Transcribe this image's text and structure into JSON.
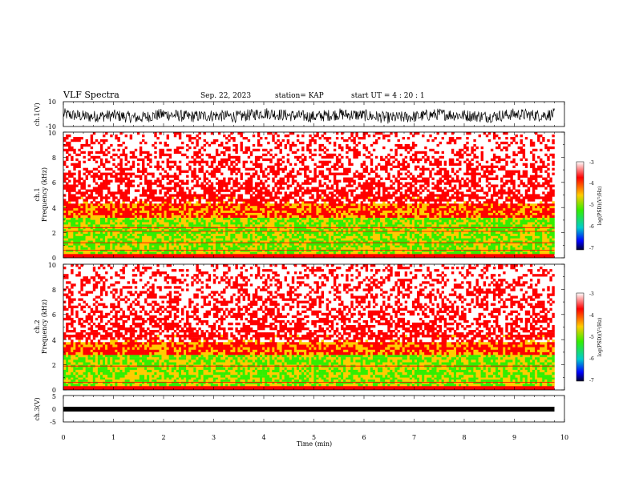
{
  "header": {
    "title": "VLF Spectra",
    "date": "Sep. 22, 2023",
    "station": "station= KAP",
    "start": "start  UT  =   4 : 20 : 1"
  },
  "colors": {
    "high": "#ff0000",
    "mid": "#ffcc00",
    "green": "#33ee00",
    "low": "#0000ff",
    "trace": "#000000"
  },
  "chart_data": [
    {
      "type": "line",
      "name": "ch1-waveform",
      "ylabel": "ch.1(V)",
      "ylim": [
        -10,
        10
      ],
      "yticks": [
        "10",
        "-10"
      ],
      "x": [
        0,
        0.5,
        1,
        1.5,
        2,
        2.5,
        3,
        3.5,
        4,
        4.5,
        5,
        5.5,
        6,
        6.5,
        7,
        7.5,
        8,
        8.5,
        9,
        9.5,
        9.8
      ],
      "values": [
        -2,
        -4,
        -3,
        -5,
        -2,
        -4,
        -3,
        -4,
        -1,
        -3,
        -4,
        -2,
        -3,
        -5,
        -4,
        -2,
        -3,
        -4,
        -2,
        -3,
        -2
      ],
      "amplitude_envelope": 6
    },
    {
      "type": "heatmap",
      "name": "ch1-spectrogram",
      "ylabel": "ch.1",
      "ylabel2": "Frequency (kHz)",
      "ylim": [
        0,
        10
      ],
      "yticks": [
        "0",
        "2",
        "4",
        "6",
        "8",
        "10"
      ],
      "zlabel": "log(PSD)(V²/Hz)",
      "zlim": [
        -7,
        -3
      ],
      "zticks": [
        "-3",
        "-4",
        "-5",
        "-6",
        "-7"
      ],
      "bands": [
        {
          "freq_khz": [
            0.3,
            1.0
          ],
          "level": -5.2
        },
        {
          "freq_khz": [
            1.0,
            3.2
          ],
          "level": -4.8
        },
        {
          "freq_khz": [
            3.2,
            4.5
          ],
          "level": -4.2
        },
        {
          "freq_khz": [
            4.5,
            10
          ],
          "level": -3.6
        }
      ],
      "lines_khz": [
        0.6,
        1.2,
        2.1,
        2.4
      ]
    },
    {
      "type": "heatmap",
      "name": "ch2-spectrogram",
      "ylabel": "ch.2",
      "ylabel2": "Frequency (kHz)",
      "ylim": [
        0,
        10
      ],
      "yticks": [
        "0",
        "2",
        "4",
        "6",
        "8",
        "10"
      ],
      "zlabel": "log(PSD)(V²/Hz)",
      "zlim": [
        -7,
        -3
      ],
      "zticks": [
        "-3",
        "-4",
        "-5",
        "-6",
        "-7"
      ],
      "bands": [
        {
          "freq_khz": [
            0.3,
            1.0
          ],
          "level": -5.3
        },
        {
          "freq_khz": [
            1.0,
            2.8
          ],
          "level": -4.9
        },
        {
          "freq_khz": [
            2.8,
            4.0
          ],
          "level": -4.2
        },
        {
          "freq_khz": [
            4.0,
            10
          ],
          "level": -3.6
        }
      ],
      "lines_khz": [
        0.6,
        1.9
      ]
    },
    {
      "type": "line",
      "name": "ch3-waveform",
      "ylabel": "ch.3(V)",
      "ylim": [
        -5,
        5
      ],
      "yticks": [
        "5",
        "0",
        "-5"
      ],
      "x": [
        0,
        9.8
      ],
      "values": [
        0,
        0
      ],
      "amplitude_envelope": 0.6
    }
  ],
  "xaxis": {
    "label": "Time (min)",
    "xlim": [
      0,
      10
    ],
    "ticks": [
      "0",
      "1",
      "2",
      "3",
      "4",
      "5",
      "6",
      "7",
      "8",
      "9",
      "10"
    ],
    "data_end": 9.8
  }
}
